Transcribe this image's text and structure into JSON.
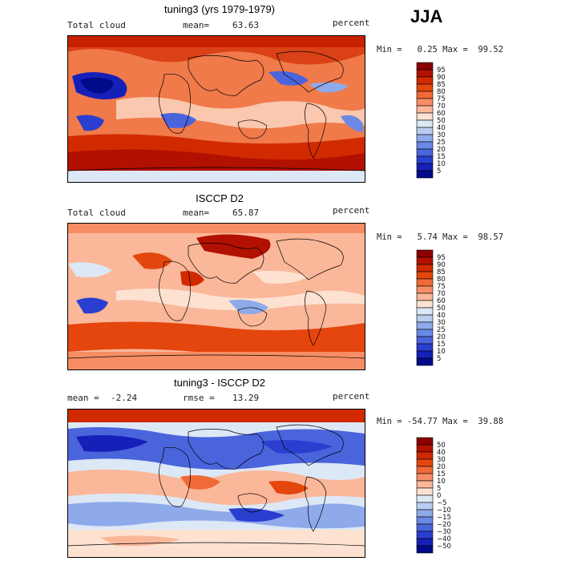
{
  "season": "JJA",
  "chart_data": [
    {
      "type": "heatmap",
      "title": "tuning3 (yrs 1979-1979)",
      "variable": "Total cloud",
      "stat_label": "mean=",
      "stat_value": "63.63",
      "units": "percent",
      "range_text": "Min =   0.25 Max =  99.52",
      "min": 0.25,
      "max": 99.52,
      "levels": [
        "95",
        "90",
        "85",
        "80",
        "75",
        "70",
        "60",
        "50",
        "40",
        "30",
        "25",
        "20",
        "15",
        "10",
        "5"
      ],
      "colors": [
        "#8b0000",
        "#b21000",
        "#d12a00",
        "#e4460e",
        "#f06a38",
        "#f78d64",
        "#fbb79a",
        "#fde2d2",
        "#dde8f6",
        "#b8cdf0",
        "#8eaaea",
        "#6a88e4",
        "#4a64dc",
        "#2a3fd0",
        "#1520b8",
        "#000a8a"
      ]
    },
    {
      "type": "heatmap",
      "title": "ISCCP D2",
      "variable": "Total cloud",
      "stat_label": "mean=",
      "stat_value": "65.87",
      "units": "percent",
      "range_text": "Min =   5.74 Max =  98.57",
      "min": 5.74,
      "max": 98.57,
      "levels": [
        "95",
        "90",
        "85",
        "80",
        "75",
        "70",
        "60",
        "50",
        "40",
        "30",
        "25",
        "20",
        "15",
        "10",
        "5"
      ],
      "colors": [
        "#8b0000",
        "#b21000",
        "#d12a00",
        "#e4460e",
        "#f06a38",
        "#f78d64",
        "#fbb79a",
        "#fde2d2",
        "#dde8f6",
        "#b8cdf0",
        "#8eaaea",
        "#6a88e4",
        "#4a64dc",
        "#2a3fd0",
        "#1520b8",
        "#000a8a"
      ]
    },
    {
      "type": "heatmap",
      "title": "tuning3 - ISCCP D2",
      "variable": "mean =",
      "stat_label": "rmse =",
      "stat_value": "13.29",
      "mean_value": "-2.24",
      "units": "percent",
      "range_text": "Min = -54.77 Max =  39.88",
      "min": -54.77,
      "max": 39.88,
      "levels": [
        "50",
        "40",
        "30",
        "20",
        "15",
        "10",
        "5",
        "0",
        "−5",
        "−10",
        "−15",
        "−20",
        "−30",
        "−40",
        "−50"
      ],
      "colors": [
        "#8b0000",
        "#b21000",
        "#d12a00",
        "#e4460e",
        "#f06a38",
        "#f78d64",
        "#fbb79a",
        "#fde2d2",
        "#dde8f6",
        "#b8cdf0",
        "#8eaaea",
        "#6a88e4",
        "#4a64dc",
        "#2a3fd0",
        "#1520b8",
        "#000a8a"
      ]
    }
  ]
}
